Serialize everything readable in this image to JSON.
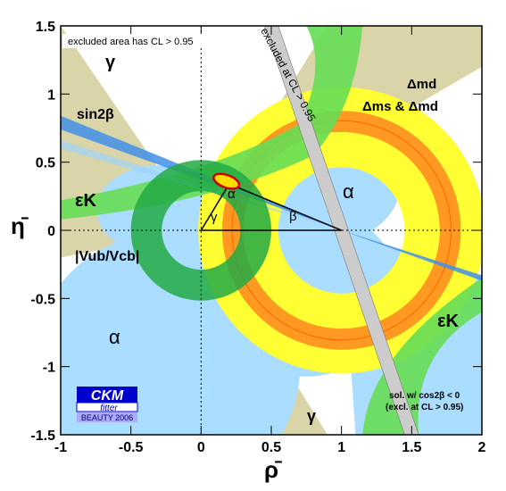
{
  "chart_data": {
    "type": "scatter",
    "xlabel": "ρ̄",
    "ylabel": "η̄",
    "xlim": [
      -1,
      2
    ],
    "ylim": [
      -1.5,
      1.5
    ],
    "x_ticks": [
      "-1",
      "-0.5",
      "0",
      "0.5",
      "1",
      "1.5",
      "2"
    ],
    "y_ticks": [
      "-1.5",
      "-1",
      "-0.5",
      "0",
      "0.5",
      "1",
      "1.5"
    ],
    "apex": {
      "rho": 0.2,
      "eta": 0.34
    },
    "constraints": [
      {
        "name": "sin2β",
        "color": "#3f8fe8"
      },
      {
        "name": "εK",
        "color": "#66dd55"
      },
      {
        "name": "|Vub/Vcb|",
        "color": "#22aa44"
      },
      {
        "name": "Δmd",
        "color": "#ffff33"
      },
      {
        "name": "Δms & Δmd",
        "color": "#ff9922"
      },
      {
        "name": "α",
        "color": "#aaddff"
      },
      {
        "name": "γ",
        "color": "#d9d5a8"
      }
    ],
    "annotations": {
      "excluded_note": "excluded area has CL > 0.95",
      "excluded_band": "excluded at CL > 0.95",
      "sin2beta": "sin2β",
      "gamma_top": "γ",
      "gamma_bottom": "γ",
      "dmd": "Δmd",
      "dms_dmd": "Δms & Δmd",
      "epsk_left": "εK",
      "epsk_right": "εK",
      "vub": "|Vub/Vcb|",
      "alpha_right": "α",
      "alpha_left": "α",
      "tri_alpha": "α",
      "tri_beta": "β",
      "tri_gamma": "γ",
      "cos_note_1": "sol. w/ cos2β < 0",
      "cos_note_2": "(excl. at CL > 0.95)"
    },
    "logo": {
      "title": "CKM",
      "subtitle": "fitter",
      "tag": "BEAUTY 2006"
    }
  }
}
